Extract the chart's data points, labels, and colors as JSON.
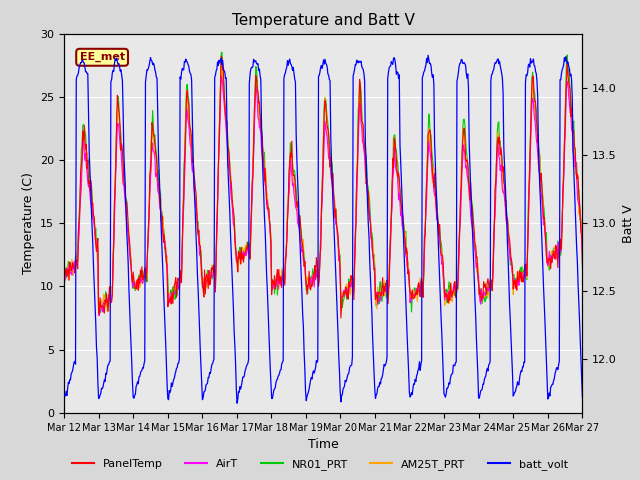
{
  "title": "Temperature and Batt V",
  "xlabel": "Time",
  "ylabel_left": "Temperature (C)",
  "ylabel_right": "Batt V",
  "annotation_text": "EE_met",
  "annotation_color": "#8B0000",
  "annotation_bg": "#FFFF99",
  "annotation_border": "#8B0000",
  "ylim_left": [
    0,
    30
  ],
  "ylim_right": [
    11.6,
    14.4
  ],
  "x_start": 12,
  "x_end": 27,
  "x_ticks": [
    12,
    13,
    14,
    15,
    16,
    17,
    18,
    19,
    20,
    21,
    22,
    23,
    24,
    25,
    26,
    27
  ],
  "x_tick_labels": [
    "Mar 12",
    "Mar 13",
    "Mar 14",
    "Mar 15",
    "Mar 16",
    "Mar 17",
    "Mar 18",
    "Mar 19",
    "Mar 20",
    "Mar 21",
    "Mar 22",
    "Mar 23",
    "Mar 24",
    "Mar 25",
    "Mar 26",
    "Mar 27"
  ],
  "legend_entries": [
    "PanelTemp",
    "AirT",
    "NR01_PRT",
    "AM25T_PRT",
    "batt_volt"
  ],
  "legend_colors": [
    "#FF0000",
    "#FF00FF",
    "#00CC00",
    "#FFA500",
    "#0000FF"
  ],
  "bg_color": "#E8E8E8",
  "grid_color": "#FFFFFF",
  "series_colors": {
    "PanelTemp": "#FF0000",
    "AirT": "#FF00FF",
    "NR01_PRT": "#00CC00",
    "AM25T_PRT": "#FFA500",
    "batt_volt": "#0000FF"
  },
  "figsize": [
    6.4,
    4.8
  ],
  "dpi": 100
}
